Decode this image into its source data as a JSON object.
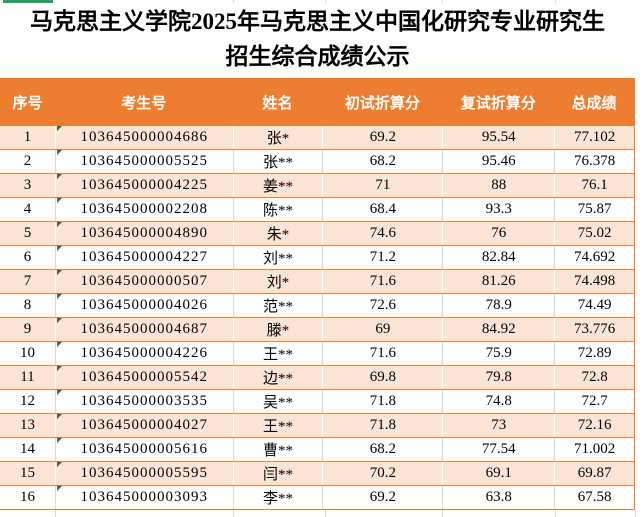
{
  "title": {
    "line1": "马克思主义学院2025年马克思主义中国化研究专业研究生",
    "line2": "招生综合成绩公示"
  },
  "table": {
    "columns": [
      "序号",
      "考生号",
      "姓名",
      "初试折算分",
      "复试折算分",
      "总成绩"
    ],
    "rows": [
      {
        "no": "1",
        "candidate_id": "103645000004686",
        "name": "张*",
        "initial_score": "69.2",
        "retest_score": "95.54",
        "total_score": "77.102"
      },
      {
        "no": "2",
        "candidate_id": "103645000005525",
        "name": "张**",
        "initial_score": "68.2",
        "retest_score": "95.46",
        "total_score": "76.378"
      },
      {
        "no": "3",
        "candidate_id": "103645000004225",
        "name": "姜**",
        "initial_score": "71",
        "retest_score": "88",
        "total_score": "76.1"
      },
      {
        "no": "4",
        "candidate_id": "103645000002208",
        "name": "陈**",
        "initial_score": "68.4",
        "retest_score": "93.3",
        "total_score": "75.87"
      },
      {
        "no": "5",
        "candidate_id": "103645000004890",
        "name": "朱*",
        "initial_score": "74.6",
        "retest_score": "76",
        "total_score": "75.02"
      },
      {
        "no": "6",
        "candidate_id": "103645000004227",
        "name": "刘**",
        "initial_score": "71.2",
        "retest_score": "82.84",
        "total_score": "74.692"
      },
      {
        "no": "7",
        "candidate_id": "103645000000507",
        "name": "刘*",
        "initial_score": "71.6",
        "retest_score": "81.26",
        "total_score": "74.498"
      },
      {
        "no": "8",
        "candidate_id": "103645000004026",
        "name": "范**",
        "initial_score": "72.6",
        "retest_score": "78.9",
        "total_score": "74.49"
      },
      {
        "no": "9",
        "candidate_id": "103645000004687",
        "name": "滕*",
        "initial_score": "69",
        "retest_score": "84.92",
        "total_score": "73.776"
      },
      {
        "no": "10",
        "candidate_id": "103645000004226",
        "name": "王**",
        "initial_score": "71.6",
        "retest_score": "75.9",
        "total_score": "72.89"
      },
      {
        "no": "11",
        "candidate_id": "103645000005542",
        "name": "边**",
        "initial_score": "69.8",
        "retest_score": "79.8",
        "total_score": "72.8"
      },
      {
        "no": "12",
        "candidate_id": "103645000003535",
        "name": "吴**",
        "initial_score": "71.8",
        "retest_score": "74.8",
        "total_score": "72.7"
      },
      {
        "no": "13",
        "candidate_id": "103645000004027",
        "name": "王**",
        "initial_score": "71.8",
        "retest_score": "73",
        "total_score": "72.16"
      },
      {
        "no": "14",
        "candidate_id": "103645000005616",
        "name": "曹**",
        "initial_score": "68.2",
        "retest_score": "77.54",
        "total_score": "71.002"
      },
      {
        "no": "15",
        "candidate_id": "103645000005595",
        "name": "闫**",
        "initial_score": "70.2",
        "retest_score": "69.1",
        "total_score": "69.87"
      },
      {
        "no": "16",
        "candidate_id": "103645000003093",
        "name": "李**",
        "initial_score": "69.2",
        "retest_score": "63.8",
        "total_score": "67.58"
      }
    ]
  },
  "colors": {
    "header_bg": "#ED7D31",
    "band_row_bg": "#FCE4D6",
    "row_border": "#ED7D31",
    "grid_line": "#D9D9D9",
    "selection_accent_green": "#21A366",
    "error_indicator_green": "#1F7244",
    "header_text": "#FFFFFF",
    "body_text": "#000000"
  }
}
